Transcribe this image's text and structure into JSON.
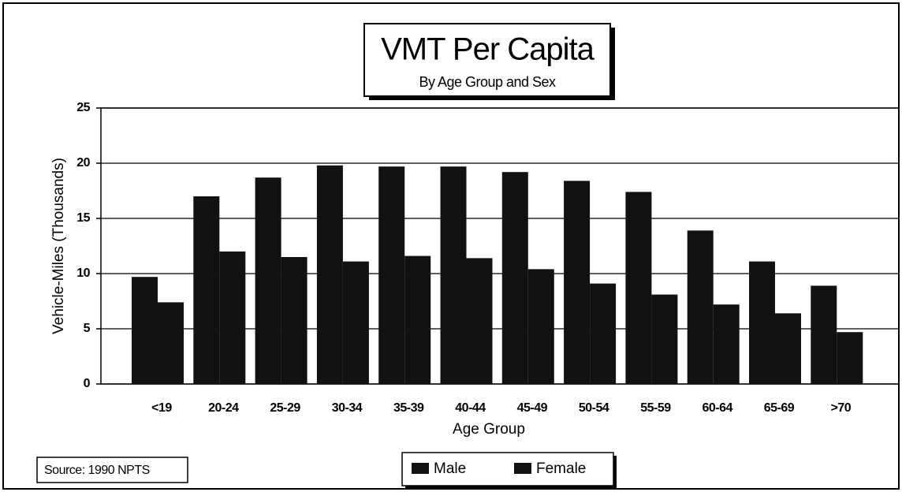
{
  "chart_data": {
    "type": "bar",
    "title": "VMT Per Capita",
    "subtitle": "By Age Group and Sex",
    "x_label": "Age Group",
    "y_label": "Vehicle-Miles (Thousands)",
    "source": "Source:  1990 NPTS",
    "categories": [
      "<19",
      "20-24",
      "25-29",
      "30-34",
      "35-39",
      "40-44",
      "45-49",
      "50-54",
      "55-59",
      "60-64",
      "65-69",
      ">70"
    ],
    "series": [
      {
        "name": "Male",
        "color": "#111111",
        "values": [
          9.7,
          17,
          18.7,
          19.8,
          19.7,
          19.7,
          19.2,
          18.4,
          17.4,
          13.9,
          11.1,
          8.9
        ]
      },
      {
        "name": "Female",
        "color": "#111111",
        "values": [
          7.4,
          12,
          11.5,
          11.1,
          11.6,
          11.4,
          10.4,
          9.1,
          8.1,
          7.2,
          6.4,
          4.7
        ]
      }
    ],
    "ylim": [
      0,
      25
    ],
    "yticks": [
      0,
      5,
      10,
      15,
      20,
      25
    ],
    "grid": true
  }
}
